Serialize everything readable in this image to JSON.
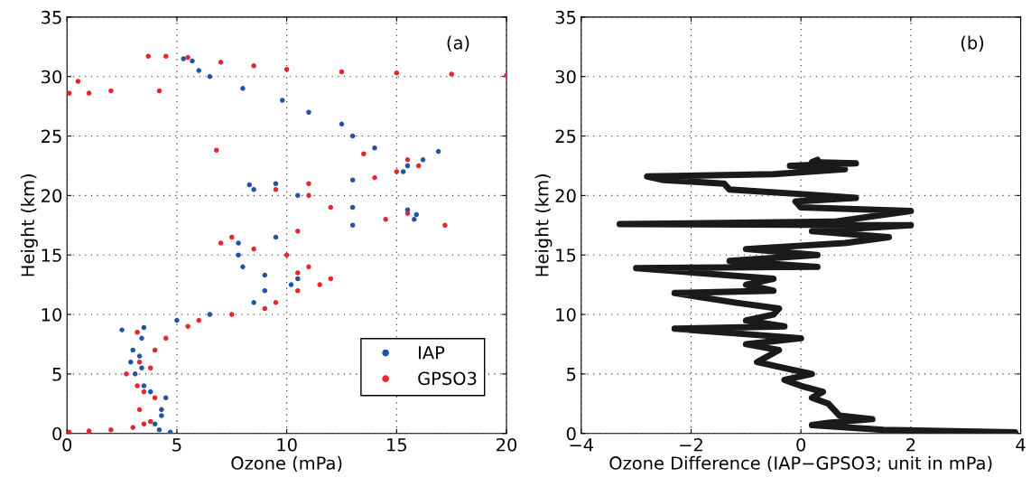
{
  "chart_data": [
    {
      "type": "scatter",
      "xlabel": "Ozone (mPa)",
      "ylabel": "Height (km)",
      "annotations": [
        "(a)"
      ],
      "xlim": [
        0,
        20
      ],
      "ylim": [
        0,
        35
      ],
      "xticks": [
        0,
        5,
        10,
        15,
        20
      ],
      "yticks": [
        0,
        5,
        10,
        15,
        20,
        25,
        30,
        35
      ],
      "grid": true,
      "legend": "bottom right",
      "marker": "circle",
      "series": [
        {
          "name": "IAP",
          "color": "#1f55a8",
          "x": [
            4.7,
            4.2,
            4.0,
            4.3,
            4.3,
            4.5,
            3.8,
            3.5,
            3.1,
            3.4,
            2.9,
            3.3,
            3.0,
            3.4,
            2.5,
            3.5,
            5.0,
            6.5,
            8.5,
            9.0,
            10.2,
            10.5,
            9.0,
            8.0,
            7.8,
            7.8,
            9.5,
            13.0,
            15.8,
            15.9,
            15.5,
            13.0,
            10.5,
            8.5,
            8.3,
            9.5,
            13.0,
            15.3,
            15.5,
            16.2,
            16.9,
            14.0,
            13.0,
            12.5,
            11.0,
            9.8,
            8.0,
            6.5,
            6.0,
            5.7,
            5.3
          ],
          "values": [
            0.1,
            0.3,
            0.8,
            1.5,
            2.0,
            3.0,
            3.5,
            4.0,
            5.0,
            5.5,
            6.0,
            6.5,
            7.0,
            8.0,
            8.7,
            8.9,
            9.5,
            10.0,
            11.0,
            12.0,
            12.5,
            13.0,
            13.3,
            14.0,
            15.0,
            16.0,
            16.5,
            17.5,
            18.0,
            18.4,
            18.8,
            19.0,
            20.0,
            20.5,
            20.9,
            21.0,
            21.3,
            22.0,
            22.5,
            23.0,
            23.7,
            24.0,
            25.0,
            26.0,
            27.0,
            28.0,
            29.0,
            30.0,
            30.5,
            31.3,
            31.5
          ]
        },
        {
          "name": "GPSO3",
          "color": "#e8262b",
          "x": [
            0.1,
            1.0,
            2.0,
            3.0,
            3.5,
            3.8,
            3.3,
            4.0,
            3.5,
            3.2,
            2.7,
            3.8,
            3.3,
            4.0,
            4.5,
            3.2,
            5.5,
            6.0,
            7.5,
            9.0,
            9.5,
            10.5,
            11.5,
            12.0,
            10.5,
            11.0,
            10.0,
            8.5,
            7.0,
            7.5,
            10.5,
            17.2,
            14.5,
            15.5,
            12.0,
            11.0,
            9.5,
            11.0,
            14.0,
            15.0,
            16.0,
            15.5,
            13.5,
            6.8,
            0.1,
            1.0,
            2.0,
            4.2,
            0.5,
            20.0,
            17.5,
            15.0,
            12.5,
            10.0,
            8.5,
            7.0,
            5.5,
            4.5,
            3.7
          ],
          "values": [
            0.1,
            0.2,
            0.3,
            0.5,
            0.8,
            1.0,
            2.0,
            3.0,
            3.5,
            4.0,
            5.0,
            5.5,
            6.0,
            7.0,
            8.0,
            8.5,
            9.0,
            9.5,
            10.0,
            10.5,
            11.0,
            12.0,
            12.5,
            13.0,
            13.5,
            14.0,
            15.0,
            15.5,
            16.0,
            16.5,
            17.0,
            17.5,
            18.0,
            18.5,
            19.0,
            20.0,
            20.5,
            21.0,
            21.5,
            22.0,
            22.5,
            23.0,
            23.5,
            23.8,
            28.6,
            28.6,
            28.8,
            28.8,
            29.6,
            30.1,
            30.2,
            30.3,
            30.4,
            30.6,
            30.9,
            31.2,
            31.6,
            31.7,
            31.7
          ]
        }
      ]
    },
    {
      "type": "line",
      "xlabel": "Ozone Difference (IAP−GPSO3; unit in mPa)",
      "ylabel": "Height (km)",
      "annotations": [
        "(b)"
      ],
      "xlim": [
        -4,
        4
      ],
      "ylim": [
        0,
        35
      ],
      "xticks": [
        {
          "value": -4,
          "label": "−4"
        },
        {
          "value": -2,
          "label": "−2"
        },
        0,
        2,
        4
      ],
      "yticks": [
        0,
        5,
        10,
        15,
        20,
        25,
        30,
        35
      ],
      "grid": true,
      "line_style": "solid",
      "series": [
        {
          "color": "#1a1a1a",
          "x": [
            3.9,
            1.5,
            0.2,
            0.5,
            1.3,
            0.7,
            0.5,
            0.2,
            0.4,
            0.0,
            -0.3,
            0.2,
            -0.3,
            -0.8,
            -0.4,
            -1.0,
            0.0,
            -2.3,
            -0.3,
            -1.0,
            -0.5,
            -0.4,
            -1.2,
            -2.3,
            -0.5,
            -1.0,
            -0.5,
            -3.0,
            0.3,
            -1.3,
            0.3,
            -1.0,
            0.8,
            1.6,
            0.2,
            2.0,
            -3.3,
            0.6,
            2.0,
            0.0,
            -0.1,
            1.0,
            0.4,
            -1.3,
            -1.4,
            -2.5,
            -2.8,
            -0.5,
            0.8,
            -0.2,
            1.0,
            0.2,
            0.3
          ],
          "values": [
            0.1,
            0.3,
            0.7,
            0.9,
            1.2,
            1.5,
            2.5,
            3.0,
            3.5,
            4.0,
            4.5,
            5.0,
            5.5,
            6.0,
            7.0,
            7.5,
            8.0,
            8.8,
            9.0,
            9.5,
            10.0,
            10.5,
            11.0,
            11.8,
            12.0,
            12.5,
            13.0,
            13.9,
            14.0,
            14.5,
            15.0,
            15.5,
            16.0,
            16.5,
            17.0,
            17.5,
            17.6,
            17.8,
            18.7,
            19.0,
            19.5,
            19.8,
            20.0,
            20.5,
            21.0,
            21.3,
            21.6,
            21.8,
            22.2,
            22.5,
            22.7,
            22.8,
            23.0
          ]
        }
      ]
    }
  ]
}
